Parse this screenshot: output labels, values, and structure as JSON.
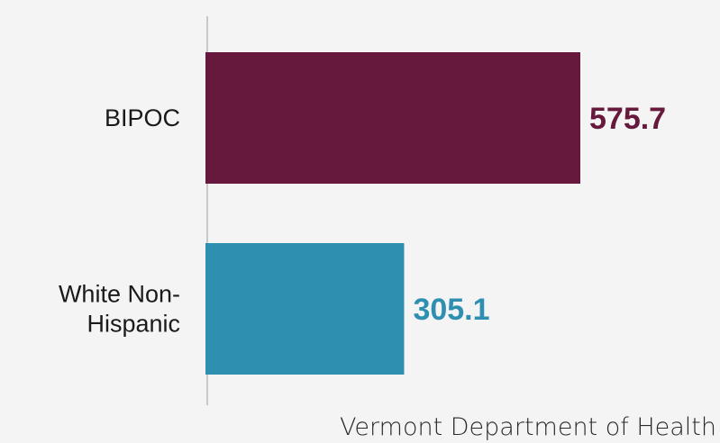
{
  "chart_data": {
    "type": "bar",
    "orientation": "horizontal",
    "categories": [
      "BIPOC",
      "White Non-Hispanic"
    ],
    "category_label_lines": [
      [
        "BIPOC"
      ],
      [
        "White Non-",
        "Hispanic"
      ]
    ],
    "values": [
      575.7,
      305.1
    ],
    "value_labels": [
      "575.7",
      "305.1"
    ],
    "colors": [
      "#66193d",
      "#2e8fb0"
    ],
    "xlim": [
      0,
      800
    ],
    "grid": false,
    "title": "",
    "xlabel": "",
    "ylabel": ""
  },
  "source": "Vermont Department of Health"
}
